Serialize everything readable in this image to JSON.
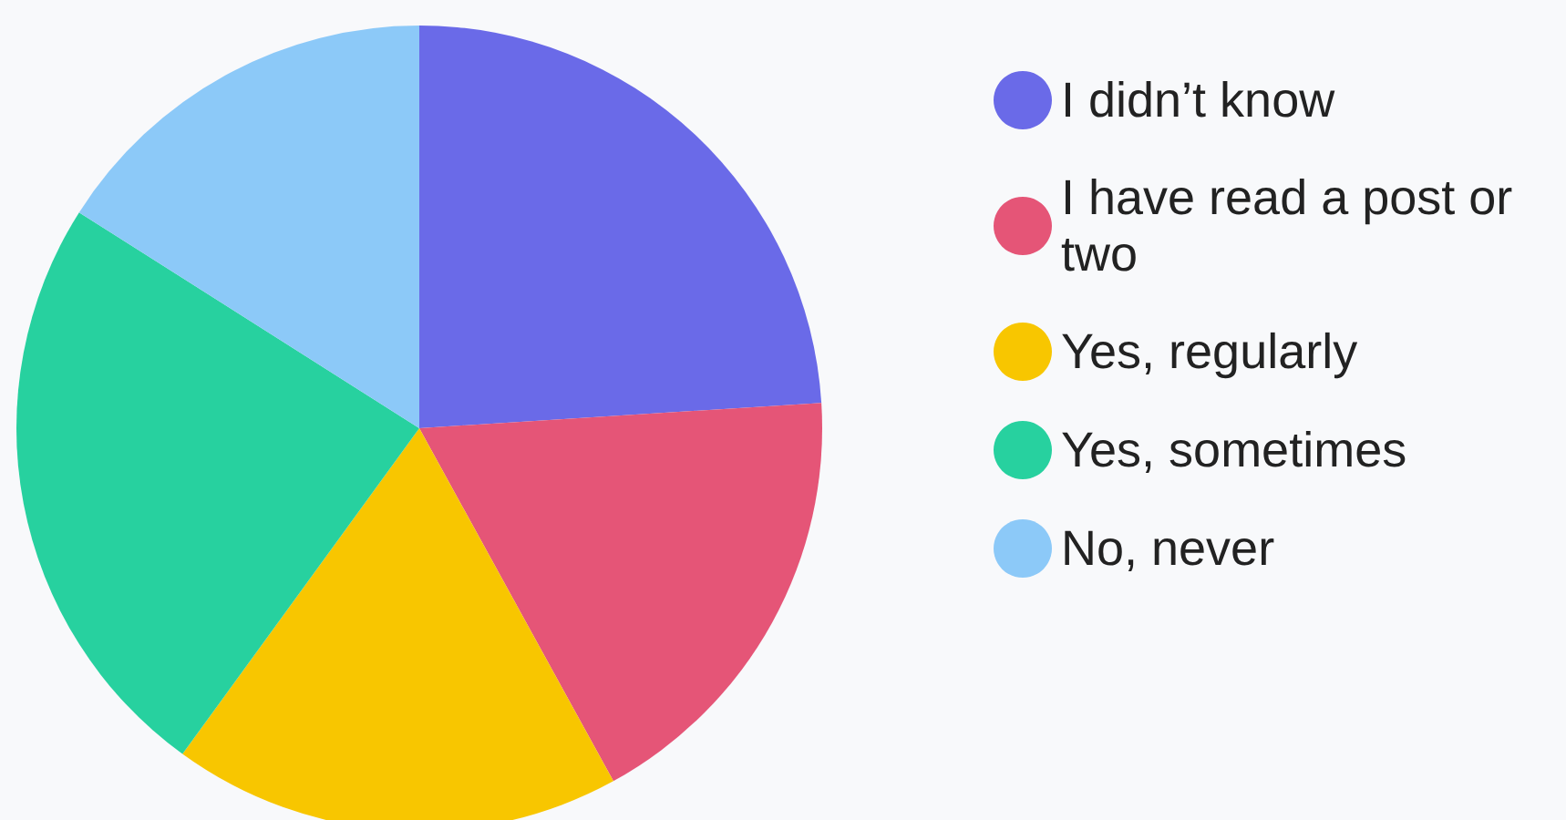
{
  "chart_data": {
    "type": "pie",
    "categories": [
      "I didn’t know",
      "I have read a post or two",
      "Yes, regularly",
      "Yes, sometimes",
      "No, never"
    ],
    "values": [
      24,
      18,
      18,
      24,
      16
    ],
    "colors": [
      "#6a6ae8",
      "#e55577",
      "#f8c600",
      "#27d19f",
      "#8cc9f8"
    ],
    "legend": "right"
  }
}
